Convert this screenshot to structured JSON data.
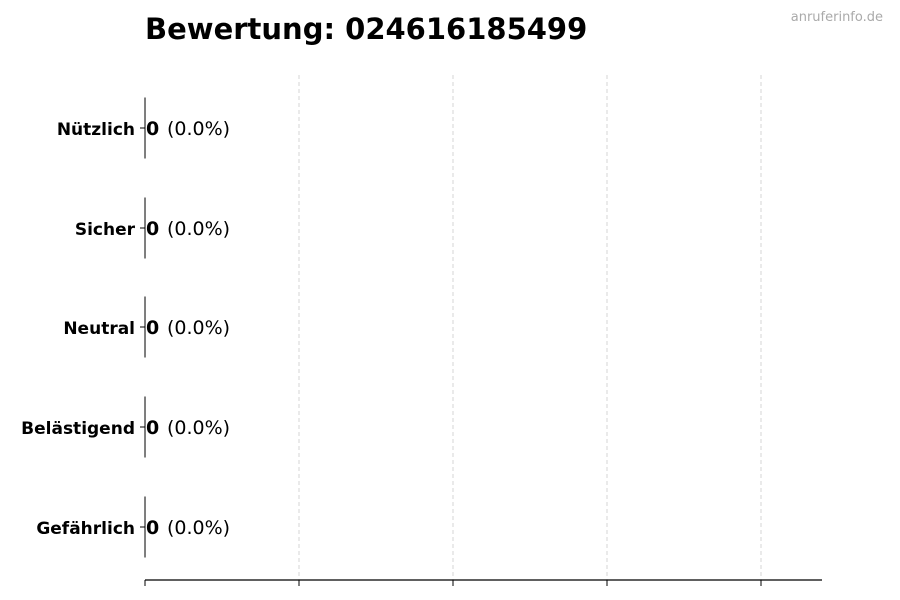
{
  "watermark": "anruferinfo.de",
  "chart_data": {
    "type": "bar",
    "orientation": "horizontal",
    "title": "Bewertung: 024616185499",
    "categories": [
      "Nützlich",
      "Sicher",
      "Neutral",
      "Belästigend",
      "Gefährlich"
    ],
    "values": [
      0,
      0,
      0,
      0,
      0
    ],
    "data_labels": [
      "(0.0%)",
      "(0.0%)",
      "(0.0%)",
      "(0.0%)",
      "(0.0%)"
    ],
    "xlabel": "",
    "ylabel": "",
    "x_tick_labels": [],
    "grid": "vertical dashed",
    "legend": "none",
    "colors": {
      "bar_edge": "#000000",
      "grid": "#cccccc",
      "text": "#000000",
      "watermark": "#aaaaaa"
    }
  }
}
